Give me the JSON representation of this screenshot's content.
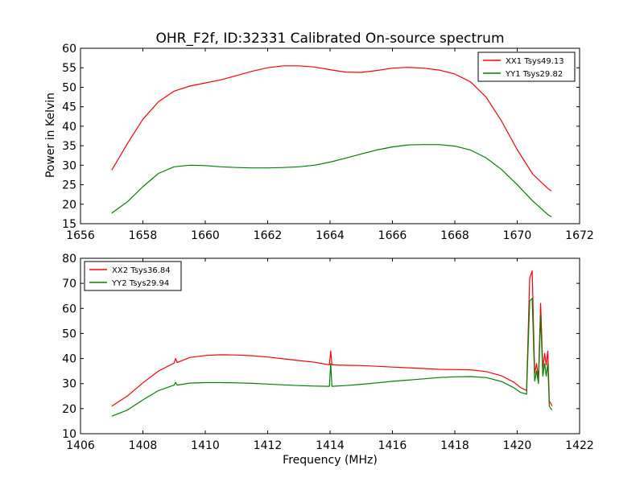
{
  "chart_data": [
    {
      "type": "line",
      "title": "OHR_F2f, ID:32331 Calibrated On-source spectrum",
      "xlabel": "",
      "ylabel": "Power in Kelvin",
      "xlim": [
        1656,
        1672
      ],
      "ylim": [
        15,
        60
      ],
      "xticks": [
        "1656",
        "1658",
        "1660",
        "1662",
        "1664",
        "1666",
        "1668",
        "1670",
        "1672"
      ],
      "yticks": [
        "15",
        "20",
        "25",
        "30",
        "35",
        "40",
        "45",
        "50",
        "55",
        "60"
      ],
      "legend_position": "top-right",
      "series": [
        {
          "name": "XX1 Tsys49.13",
          "color": "#ff0000",
          "x": [
            1657.0,
            1657.5,
            1658.0,
            1658.5,
            1659.0,
            1659.5,
            1660.0,
            1660.5,
            1661.0,
            1661.5,
            1662.0,
            1662.5,
            1663.0,
            1663.5,
            1664.0,
            1664.5,
            1665.0,
            1665.5,
            1666.0,
            1666.5,
            1667.0,
            1667.5,
            1668.0,
            1668.5,
            1669.0,
            1669.5,
            1670.0,
            1670.5,
            1671.0,
            1671.1
          ],
          "y": [
            28.7,
            35.5,
            41.8,
            46.3,
            49.0,
            50.3,
            51.1,
            51.9,
            53.0,
            54.1,
            55.0,
            55.5,
            55.5,
            55.2,
            54.5,
            53.9,
            53.8,
            54.3,
            54.9,
            55.1,
            54.9,
            54.4,
            53.4,
            51.4,
            47.5,
            41.3,
            34.0,
            27.7,
            23.9,
            23.4
          ]
        },
        {
          "name": "YY1 Tsys29.82",
          "color": "#008000",
          "x": [
            1657.0,
            1657.5,
            1658.0,
            1658.5,
            1659.0,
            1659.5,
            1660.0,
            1660.5,
            1661.0,
            1661.5,
            1662.0,
            1662.5,
            1663.0,
            1663.5,
            1664.0,
            1664.5,
            1665.0,
            1665.5,
            1666.0,
            1666.5,
            1667.0,
            1667.5,
            1668.0,
            1668.5,
            1669.0,
            1669.5,
            1670.0,
            1670.5,
            1671.0,
            1671.1
          ],
          "y": [
            17.7,
            20.6,
            24.5,
            27.9,
            29.6,
            30.0,
            29.9,
            29.6,
            29.4,
            29.3,
            29.3,
            29.4,
            29.6,
            30.0,
            30.8,
            31.8,
            32.9,
            33.9,
            34.7,
            35.2,
            35.3,
            35.3,
            34.9,
            33.9,
            31.9,
            28.9,
            25.0,
            20.8,
            17.2,
            16.8
          ]
        }
      ]
    },
    {
      "type": "line",
      "title": "",
      "xlabel": "Frequency (MHz)",
      "ylabel": "",
      "xlim": [
        1406,
        1422
      ],
      "ylim": [
        10,
        80
      ],
      "xticks": [
        "1406",
        "1408",
        "1410",
        "1412",
        "1414",
        "1416",
        "1418",
        "1420",
        "1422"
      ],
      "yticks": [
        "10",
        "20",
        "30",
        "40",
        "50",
        "60",
        "70",
        "80"
      ],
      "legend_position": "top-left",
      "series": [
        {
          "name": "XX2 Tsys36.84",
          "color": "#ff0000",
          "x": [
            1407.0,
            1407.5,
            1408.0,
            1408.5,
            1409.0,
            1409.05,
            1409.1,
            1409.5,
            1410.0,
            1410.5,
            1411.0,
            1411.5,
            1412.0,
            1412.5,
            1413.0,
            1413.5,
            1413.98,
            1414.02,
            1414.06,
            1414.5,
            1415.0,
            1415.5,
            1416.0,
            1416.5,
            1417.0,
            1417.5,
            1418.0,
            1418.5,
            1419.0,
            1419.5,
            1419.9,
            1420.1,
            1420.3,
            1420.4,
            1420.48,
            1420.56,
            1420.62,
            1420.68,
            1420.75,
            1420.82,
            1420.88,
            1420.93,
            1420.98,
            1421.03,
            1421.08,
            1421.12
          ],
          "y": [
            21.0,
            25.0,
            30.3,
            35.0,
            38.2,
            40.0,
            38.4,
            40.4,
            41.2,
            41.5,
            41.4,
            41.1,
            40.6,
            39.9,
            39.2,
            38.5,
            37.5,
            43.0,
            37.5,
            37.3,
            37.2,
            36.9,
            36.6,
            36.3,
            36.0,
            35.7,
            35.6,
            35.5,
            34.8,
            33.1,
            30.5,
            28.5,
            27.2,
            72.0,
            75.0,
            34.0,
            38.0,
            32.0,
            62.0,
            36.0,
            42.0,
            37.5,
            43.0,
            23.0,
            22.0,
            21.0
          ]
        },
        {
          "name": "YY2 Tsys29.94",
          "color": "#008000",
          "x": [
            1407.0,
            1407.5,
            1408.0,
            1408.5,
            1409.0,
            1409.05,
            1409.1,
            1409.5,
            1410.0,
            1410.5,
            1411.0,
            1411.5,
            1412.0,
            1412.5,
            1413.0,
            1413.5,
            1413.98,
            1414.02,
            1414.06,
            1414.5,
            1415.0,
            1415.5,
            1416.0,
            1416.5,
            1417.0,
            1417.5,
            1418.0,
            1418.5,
            1419.0,
            1419.5,
            1419.9,
            1420.1,
            1420.3,
            1420.4,
            1420.48,
            1420.56,
            1420.62,
            1420.68,
            1420.75,
            1420.82,
            1420.88,
            1420.93,
            1420.98,
            1421.03,
            1421.08,
            1421.12
          ],
          "y": [
            17.0,
            19.4,
            23.5,
            27.2,
            29.4,
            30.5,
            29.4,
            30.2,
            30.4,
            30.4,
            30.3,
            30.1,
            29.8,
            29.5,
            29.2,
            29.0,
            28.9,
            38.0,
            28.9,
            29.2,
            29.7,
            30.3,
            30.9,
            31.4,
            31.9,
            32.4,
            32.7,
            32.8,
            32.4,
            30.8,
            28.3,
            26.5,
            25.8,
            63.0,
            64.0,
            31.0,
            35.0,
            30.0,
            57.0,
            33.0,
            38.0,
            33.0,
            38.0,
            21.0,
            20.0,
            19.5
          ]
        }
      ]
    }
  ]
}
